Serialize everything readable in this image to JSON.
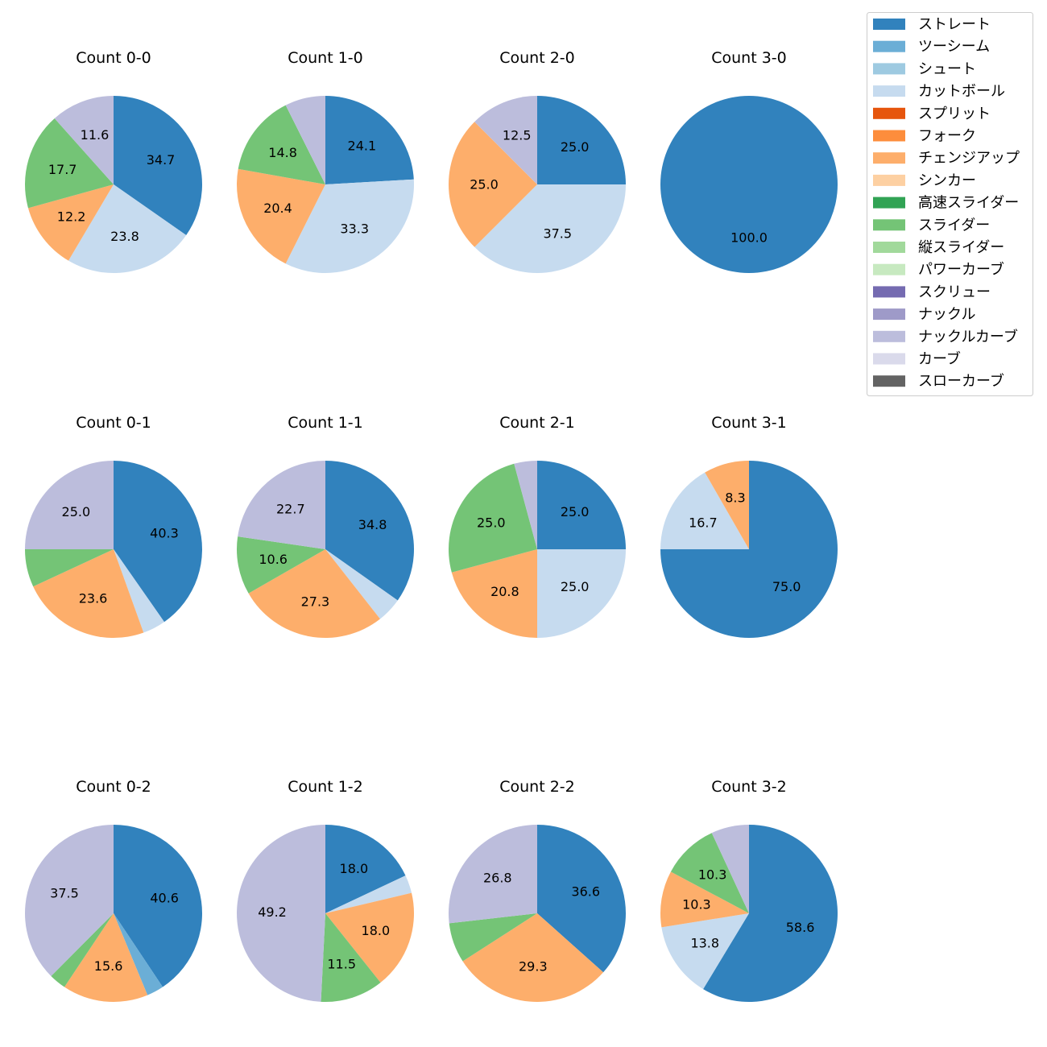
{
  "legend": [
    {
      "name": "ストレート",
      "color": "#3182bd"
    },
    {
      "name": "ツーシーム",
      "color": "#6baed6"
    },
    {
      "name": "シュート",
      "color": "#9ecae1"
    },
    {
      "name": "カットボール",
      "color": "#c6dbef"
    },
    {
      "name": "スプリット",
      "color": "#e6550d"
    },
    {
      "name": "フォーク",
      "color": "#fd8d3c"
    },
    {
      "name": "チェンジアップ",
      "color": "#fdae6b"
    },
    {
      "name": "シンカー",
      "color": "#fdd0a2"
    },
    {
      "name": "高速スライダー",
      "color": "#31a354"
    },
    {
      "name": "スライダー",
      "color": "#74c476"
    },
    {
      "name": "縦スライダー",
      "color": "#a1d99b"
    },
    {
      "name": "パワーカーブ",
      "color": "#c7e9c0"
    },
    {
      "name": "スクリュー",
      "color": "#756bb1"
    },
    {
      "name": "ナックル",
      "color": "#9e9ac8"
    },
    {
      "name": "ナックルカーブ",
      "color": "#bcbddc"
    },
    {
      "name": "カーブ",
      "color": "#dadaeb"
    },
    {
      "name": "スローカーブ",
      "color": "#636363"
    }
  ],
  "chart_data": [
    {
      "type": "pie",
      "title": "Count 0-0",
      "slices": [
        {
          "label": "ストレート",
          "value": 34.7
        },
        {
          "label": "カットボール",
          "value": 23.8
        },
        {
          "label": "チェンジアップ",
          "value": 12.2
        },
        {
          "label": "スライダー",
          "value": 17.7
        },
        {
          "label": "ナックルカーブ",
          "value": 11.6
        }
      ]
    },
    {
      "type": "pie",
      "title": "Count 1-0",
      "slices": [
        {
          "label": "ストレート",
          "value": 24.1
        },
        {
          "label": "カットボール",
          "value": 33.3
        },
        {
          "label": "チェンジアップ",
          "value": 20.4
        },
        {
          "label": "スライダー",
          "value": 14.8
        },
        {
          "label": "ナックルカーブ",
          "value": 7.4
        }
      ]
    },
    {
      "type": "pie",
      "title": "Count 2-0",
      "slices": [
        {
          "label": "ストレート",
          "value": 25.0
        },
        {
          "label": "カットボール",
          "value": 37.5
        },
        {
          "label": "チェンジアップ",
          "value": 25.0
        },
        {
          "label": "ナックルカーブ",
          "value": 12.5
        }
      ]
    },
    {
      "type": "pie",
      "title": "Count 3-0",
      "slices": [
        {
          "label": "ストレート",
          "value": 100.0
        }
      ]
    },
    {
      "type": "pie",
      "title": "Count 0-1",
      "slices": [
        {
          "label": "ストレート",
          "value": 40.3
        },
        {
          "label": "カットボール",
          "value": 4.2
        },
        {
          "label": "チェンジアップ",
          "value": 23.6
        },
        {
          "label": "スライダー",
          "value": 6.9
        },
        {
          "label": "ナックルカーブ",
          "value": 25.0
        }
      ]
    },
    {
      "type": "pie",
      "title": "Count 1-1",
      "slices": [
        {
          "label": "ストレート",
          "value": 34.8
        },
        {
          "label": "カットボール",
          "value": 4.6
        },
        {
          "label": "チェンジアップ",
          "value": 27.3
        },
        {
          "label": "スライダー",
          "value": 10.6
        },
        {
          "label": "ナックルカーブ",
          "value": 22.7
        }
      ]
    },
    {
      "type": "pie",
      "title": "Count 2-1",
      "slices": [
        {
          "label": "ストレート",
          "value": 25.0
        },
        {
          "label": "カットボール",
          "value": 25.0
        },
        {
          "label": "チェンジアップ",
          "value": 20.8
        },
        {
          "label": "スライダー",
          "value": 25.0
        },
        {
          "label": "ナックルカーブ",
          "value": 4.2
        }
      ]
    },
    {
      "type": "pie",
      "title": "Count 3-1",
      "slices": [
        {
          "label": "ストレート",
          "value": 75.0
        },
        {
          "label": "カットボール",
          "value": 16.7
        },
        {
          "label": "チェンジアップ",
          "value": 8.3
        }
      ]
    },
    {
      "type": "pie",
      "title": "Count 0-2",
      "slices": [
        {
          "label": "ストレート",
          "value": 40.6
        },
        {
          "label": "ツーシーム",
          "value": 3.1
        },
        {
          "label": "チェンジアップ",
          "value": 15.6
        },
        {
          "label": "スライダー",
          "value": 3.1
        },
        {
          "label": "ナックルカーブ",
          "value": 37.5
        }
      ]
    },
    {
      "type": "pie",
      "title": "Count 1-2",
      "slices": [
        {
          "label": "ストレート",
          "value": 18.0
        },
        {
          "label": "カットボール",
          "value": 3.3
        },
        {
          "label": "チェンジアップ",
          "value": 18.0
        },
        {
          "label": "スライダー",
          "value": 11.5
        },
        {
          "label": "ナックルカーブ",
          "value": 49.2
        }
      ]
    },
    {
      "type": "pie",
      "title": "Count 2-2",
      "slices": [
        {
          "label": "ストレート",
          "value": 36.6
        },
        {
          "label": "チェンジアップ",
          "value": 29.3
        },
        {
          "label": "スライダー",
          "value": 7.3
        },
        {
          "label": "ナックルカーブ",
          "value": 26.8
        }
      ]
    },
    {
      "type": "pie",
      "title": "Count 3-2",
      "slices": [
        {
          "label": "ストレート",
          "value": 58.6
        },
        {
          "label": "カットボール",
          "value": 13.8
        },
        {
          "label": "チェンジアップ",
          "value": 10.3
        },
        {
          "label": "スライダー",
          "value": 10.3
        },
        {
          "label": "ナックルカーブ",
          "value": 6.9
        }
      ]
    }
  ]
}
